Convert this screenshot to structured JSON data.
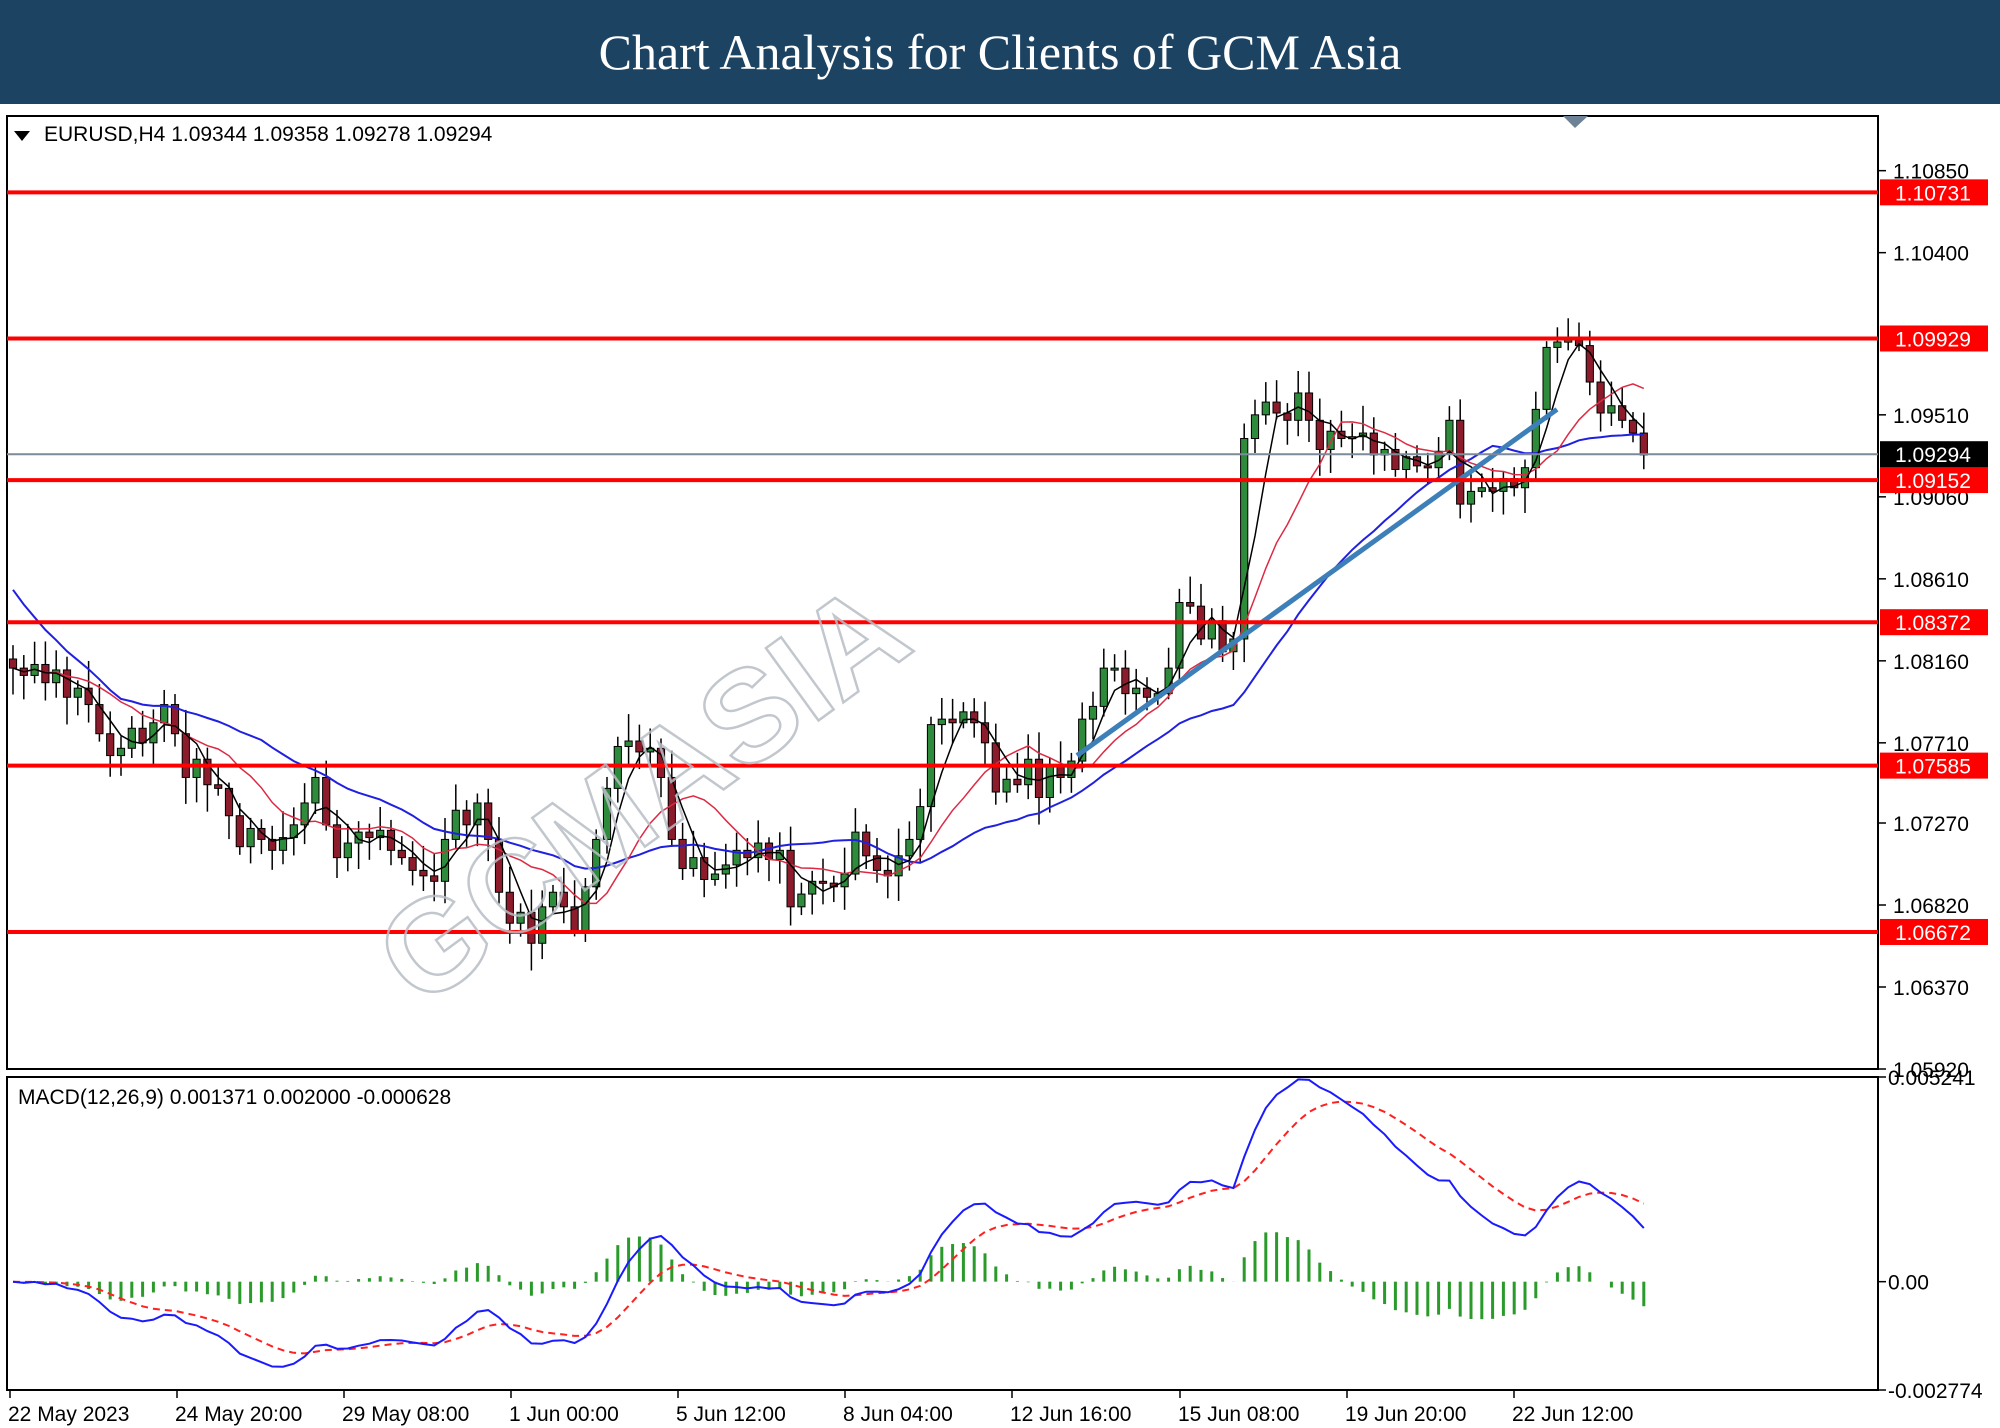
{
  "banner": {
    "title": "Chart Analysis for Clients of GCM Asia"
  },
  "chart_data": [
    {
      "type": "candlestick",
      "symbol_header": "EURUSD,H4  1.09344 1.09358 1.09278 1.09294",
      "ohlc_last": {
        "open": 1.09344,
        "high": 1.09358,
        "low": 1.09278,
        "close": 1.09294
      },
      "current_price": "1.09294",
      "y_ticks": [
        "1.10850",
        "1.10400",
        "1.09510",
        "1.09060",
        "1.08610",
        "1.08160",
        "1.07710",
        "1.07270",
        "1.06820",
        "1.06370",
        "1.05920"
      ],
      "x_ticks": [
        "22 May 2023",
        "24 May 20:00",
        "29 May 08:00",
        "1 Jun 00:00",
        "5 Jun 12:00",
        "8 Jun 04:00",
        "12 Jun 16:00",
        "15 Jun 08:00",
        "19 Jun 20:00",
        "22 Jun 12:00"
      ],
      "ylim": [
        1.0592,
        1.1115
      ],
      "horizontal_levels": [
        "1.10731",
        "1.09929",
        "1.09152",
        "1.08372",
        "1.07585",
        "1.06672"
      ],
      "level_color": "#ff0000",
      "closes": [
        1.0812,
        1.0808,
        1.0814,
        1.0804,
        1.0811,
        1.0796,
        1.0801,
        1.0792,
        1.0776,
        1.0764,
        1.0768,
        1.0779,
        1.0771,
        1.0782,
        1.0792,
        1.0776,
        1.0752,
        1.0762,
        1.0748,
        1.0746,
        1.0731,
        1.0714,
        1.0724,
        1.0718,
        1.0712,
        1.0719,
        1.0726,
        1.0738,
        1.0752,
        1.0726,
        1.0708,
        1.0716,
        1.0722,
        1.0719,
        1.0723,
        1.0712,
        1.0708,
        1.0701,
        1.0698,
        1.0695,
        1.0718,
        1.0734,
        1.0726,
        1.0738,
        1.0718,
        1.0689,
        1.0672,
        1.0678,
        1.0661,
        1.0681,
        1.0689,
        1.0681,
        1.0668,
        1.0692,
        1.0718,
        1.0746,
        1.0769,
        1.0772,
        1.0766,
        1.0768,
        1.0752,
        1.0718,
        1.0702,
        1.0708,
        1.0696,
        1.0699,
        1.0704,
        1.0712,
        1.0708,
        1.0716,
        1.0707,
        1.0712,
        1.0681,
        1.0688,
        1.0695,
        1.0694,
        1.0692,
        1.0699,
        1.0722,
        1.0709,
        1.0701,
        1.0698,
        1.0709,
        1.0718,
        1.0736,
        1.0781,
        1.0784,
        1.0782,
        1.0788,
        1.0782,
        1.0771,
        1.0744,
        1.0751,
        1.0748,
        1.0762,
        1.0741,
        1.0759,
        1.0752,
        1.0761,
        1.0784,
        1.0791,
        1.0812,
        1.0812,
        1.0798,
        1.0801,
        1.0796,
        1.0798,
        1.0812,
        1.0848,
        1.0846,
        1.0828,
        1.0838,
        1.0821,
        1.0828,
        1.0938,
        1.0951,
        1.0958,
        1.0952,
        1.0948,
        1.0963,
        1.0948,
        1.0932,
        1.0942,
        1.0938,
        1.0939,
        1.0941,
        1.0929,
        1.0932,
        1.0921,
        1.0928,
        1.0923,
        1.0922,
        1.0931,
        1.0948,
        1.0902,
        1.0909,
        1.0911,
        1.0909,
        1.0916,
        1.0911,
        1.0922,
        1.0954,
        1.0988,
        1.0991,
        1.0992,
        1.0989,
        1.0969,
        1.0952,
        1.0956,
        1.0948,
        1.0941,
        1.0929
      ],
      "ma_colors": {
        "fast": "#000000",
        "mid": "#dc2a44",
        "slow": "#2020e0"
      },
      "trendline_color": "#3d7fb8",
      "macd": {
        "label": "MACD(12,26,9) 0.001371 0.002000 -0.000628",
        "values": {
          "macd": 0.001371,
          "signal": 0.002,
          "histogram": -0.000628
        },
        "y_ticks": [
          "0.005241",
          "0.00",
          "-0.002774"
        ],
        "ylim": [
          -0.002774,
          0.005241
        ],
        "main_color": "#1a1aff",
        "signal_color": "#ff2020",
        "histogram_color": "#2a9a2a"
      }
    }
  ]
}
